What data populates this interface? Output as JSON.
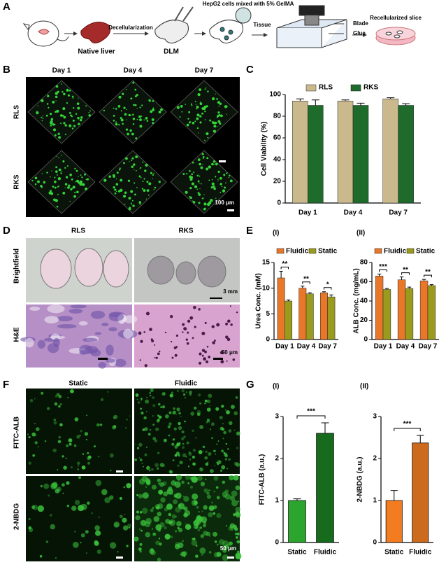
{
  "panel_labels": [
    "A",
    "B",
    "C",
    "D",
    "E",
    "F",
    "G"
  ],
  "schematic": {
    "native_liver": "Native liver",
    "decellularization": "Decellularization",
    "dlm": "DLM",
    "cells": "HepG2 cells mixed with 5% GelMA",
    "tissue": "Tissue",
    "blade": "Blade",
    "glue": "Glue",
    "slice": "Recellularized slice"
  },
  "panel_b": {
    "columns": [
      "Day 1",
      "Day 4",
      "Day 7"
    ],
    "rows": [
      "RLS",
      "RKS"
    ],
    "scale_bar": "100 μm"
  },
  "panel_d": {
    "columns": [
      "RLS",
      "RKS"
    ],
    "rows": [
      "Brightfield",
      "H&E"
    ],
    "scale_bars": [
      "3 mm",
      "50 μm"
    ]
  },
  "panel_f": {
    "columns": [
      "Static",
      "Fluidic"
    ],
    "rows": [
      "FITC-ALB",
      "2-NBDG"
    ],
    "scale_bar": "50 μm"
  },
  "chart_data": [
    {
      "type": "bar",
      "ylabel": "Cell Viability (%)",
      "categories": [
        "Day 1",
        "Day 4",
        "Day 7"
      ],
      "series": [
        {
          "name": "RLS",
          "color": "#c9b98c",
          "values": [
            94,
            94,
            96
          ],
          "errors": [
            2,
            1,
            1
          ]
        },
        {
          "name": "RKS",
          "color": "#1f6b2b",
          "values": [
            90,
            90,
            90
          ],
          "errors": [
            5,
            2,
            1.5
          ]
        }
      ],
      "ylim": [
        0,
        100
      ],
      "yticks": [
        0,
        20,
        40,
        60,
        80,
        100
      ]
    },
    {
      "type": "bar",
      "title": "(I)",
      "ylabel": "Urea Conc. (mM)",
      "categories": [
        "Day 1",
        "Day 4",
        "Day 7"
      ],
      "series": [
        {
          "name": "Fluidic",
          "color": "#e8772a",
          "values": [
            12,
            10,
            9.1
          ],
          "errors": [
            1.3,
            0.4,
            0.2
          ]
        },
        {
          "name": "Static",
          "color": "#9a9a1e",
          "values": [
            7.5,
            8.9,
            8.3
          ],
          "errors": [
            0.2,
            0.2,
            0.4
          ]
        }
      ],
      "significance": [
        "**",
        "**",
        "*"
      ],
      "ylim": [
        0,
        15
      ],
      "yticks": [
        0,
        5,
        10,
        15
      ]
    },
    {
      "type": "bar",
      "title": "(II)",
      "ylabel": "ALB Conc. (mg/mL)",
      "categories": [
        "Day 1",
        "Day 4",
        "Day 7"
      ],
      "series": [
        {
          "name": "Fluidic",
          "color": "#e8772a",
          "values": [
            66,
            62,
            61
          ],
          "errors": [
            2,
            3,
            1.5
          ]
        },
        {
          "name": "Static",
          "color": "#9a9a1e",
          "values": [
            52,
            53,
            56
          ],
          "errors": [
            1,
            1.5,
            1
          ]
        }
      ],
      "significance": [
        "***",
        "**",
        "**"
      ],
      "ylim": [
        0,
        80
      ],
      "yticks": [
        0,
        20,
        40,
        60,
        80
      ]
    },
    {
      "type": "bar",
      "title": "(I)",
      "ylabel": "FITC-ALB (a.u.)",
      "categories": [
        "Static",
        "Fluidic"
      ],
      "values": [
        1.0,
        2.6
      ],
      "errors": [
        0.04,
        0.25
      ],
      "colors": [
        "#2ba52e",
        "#176b1c"
      ],
      "significance": "***",
      "ylim": [
        0,
        3
      ],
      "yticks": [
        0,
        1,
        2,
        3
      ]
    },
    {
      "type": "bar",
      "title": "(II)",
      "ylabel": "2-NBDG (a.u.)",
      "categories": [
        "Static",
        "Fluidic"
      ],
      "values": [
        1.0,
        2.37
      ],
      "errors": [
        0.24,
        0.18
      ],
      "colors": [
        "#f47c20",
        "#cc6b1d"
      ],
      "significance": "***",
      "ylim": [
        0,
        3
      ],
      "yticks": [
        0,
        1,
        2,
        3
      ]
    }
  ]
}
